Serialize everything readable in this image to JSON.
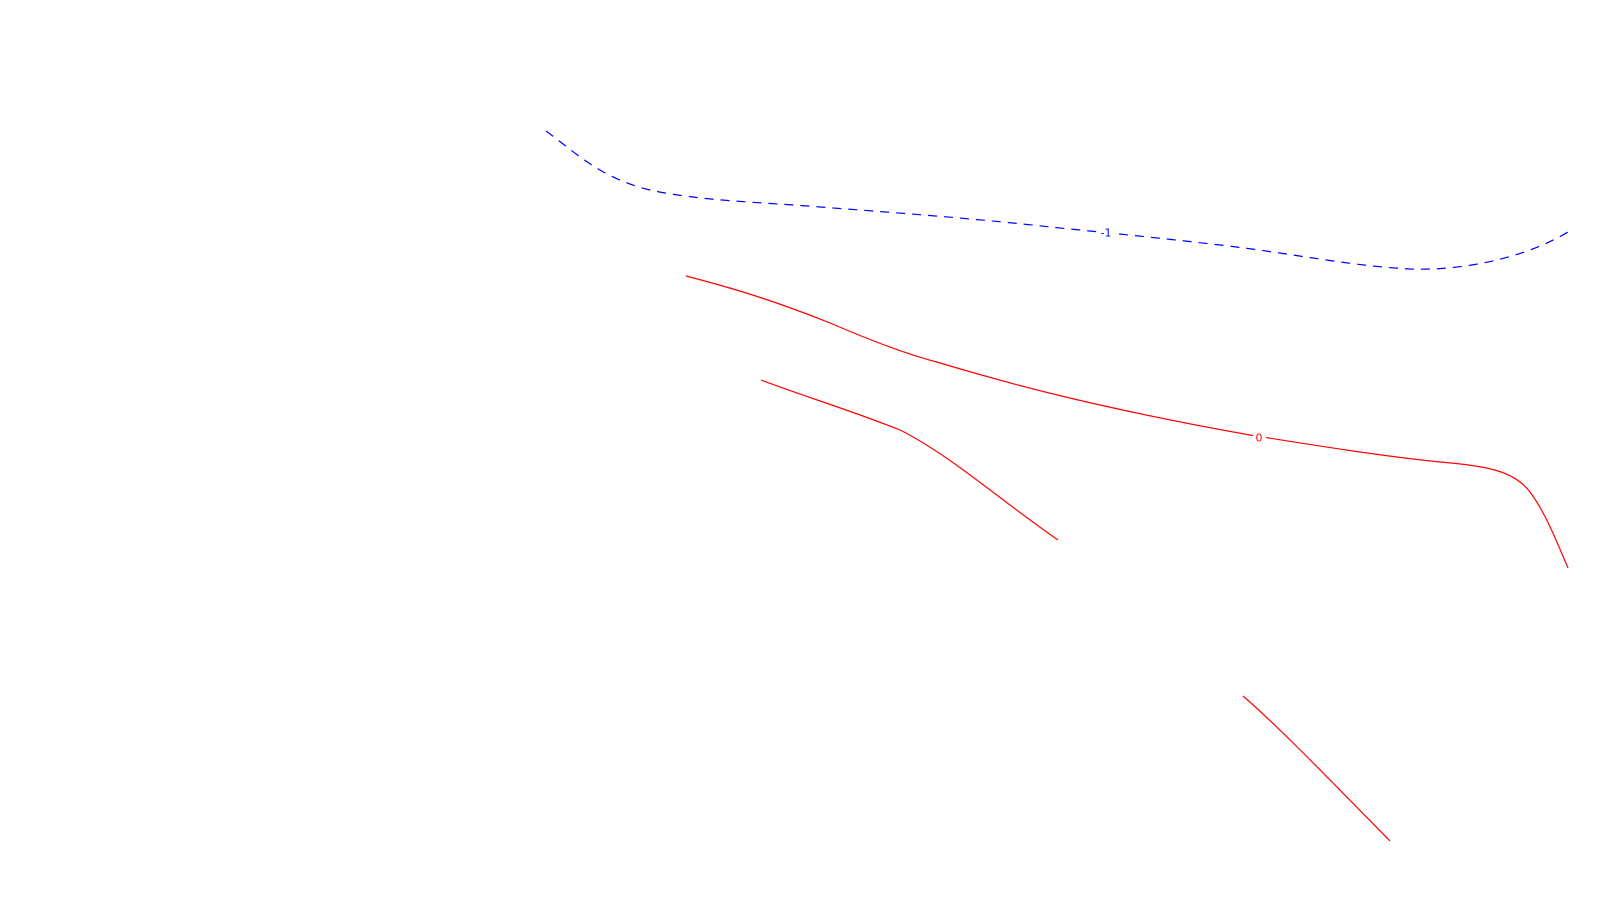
{
  "colors": {
    "background": "#ffffff",
    "negative_contour": "#0000ff",
    "zero_contour": "#ff0000"
  },
  "contours": [
    {
      "id": "contour-level-minus-1",
      "label": "-1",
      "color": "#0000ff",
      "style": "dashed"
    },
    {
      "id": "contour-level-0",
      "label": "0",
      "color": "#ff0000",
      "style": "solid"
    }
  ]
}
